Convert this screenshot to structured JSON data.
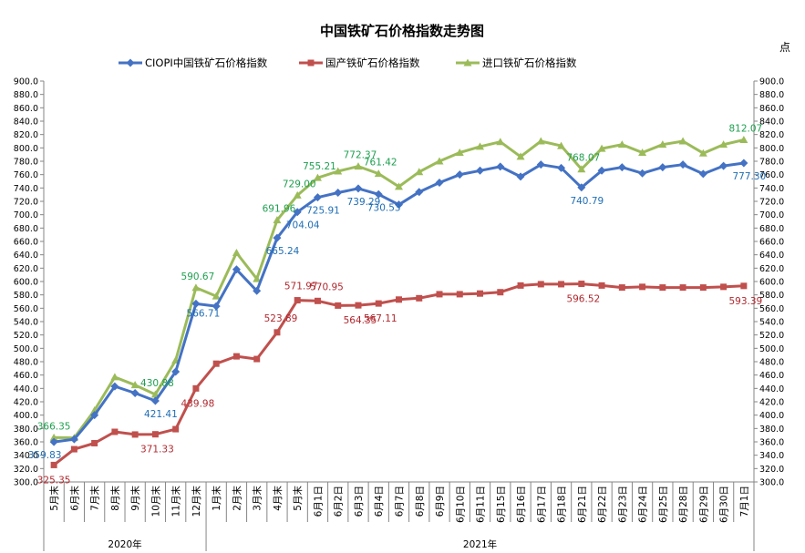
{
  "chart_data": {
    "type": "line",
    "title": "中国铁矿石价格指数走势图",
    "unit_label": "点",
    "x": [
      "5月末",
      "6月末",
      "7月末",
      "8月末",
      "9月末",
      "10月末",
      "11月末",
      "12月末",
      "1月末",
      "2月末",
      "3月末",
      "4月末",
      "5月末",
      "6月1日",
      "6月2日",
      "6月3日",
      "6月4日",
      "6月7日",
      "6月8日",
      "6月9日",
      "6月10日",
      "6月11日",
      "6月15日",
      "6月16日",
      "6月17日",
      "6月18日",
      "6月21日",
      "6月22日",
      "6月23日",
      "6月24日",
      "6月25日",
      "6月28日",
      "6月29日",
      "6月30日",
      "7月1日"
    ],
    "year_groups": [
      {
        "label": "2020年",
        "start": 0,
        "end": 7
      },
      {
        "label": "2021年",
        "start": 8,
        "end": 34
      }
    ],
    "ylim": [
      300,
      900
    ],
    "ytick_step": 20,
    "grid": false,
    "legend_position": "top",
    "series": [
      {
        "name": "CIOPI中国铁矿石价格指数",
        "color": "#4472C4",
        "marker": "diamond",
        "values": [
          359.83,
          364,
          400,
          443,
          433,
          421.41,
          465,
          566.71,
          563,
          618,
          586,
          665.24,
          704.04,
          725.91,
          733,
          739.29,
          730.53,
          715,
          734,
          748,
          760,
          766,
          772,
          757,
          775,
          770,
          740.79,
          766,
          771,
          762,
          771,
          775,
          761,
          773,
          777.3
        ],
        "labels": [
          {
            "i": 0,
            "text": "359.83"
          },
          {
            "i": 5,
            "text": "421.41"
          },
          {
            "i": 7,
            "text": "566.71"
          },
          {
            "i": 11,
            "text": "665.24"
          },
          {
            "i": 12,
            "text": "704.04"
          },
          {
            "i": 13,
            "text": "725.91"
          },
          {
            "i": 15,
            "text": "739.29"
          },
          {
            "i": 16,
            "text": "730.53"
          },
          {
            "i": 26,
            "text": "740.79"
          },
          {
            "i": 34,
            "text": "777.30"
          }
        ]
      },
      {
        "name": "国产铁矿石价格指数",
        "color": "#C0504D",
        "marker": "square",
        "values": [
          325.35,
          349,
          358,
          375,
          371,
          371.33,
          379,
          439.98,
          477,
          488,
          484,
          523.89,
          571.97,
          570.95,
          564,
          564.35,
          567.11,
          573,
          575,
          581,
          581,
          582,
          584,
          594,
          596,
          596,
          596.52,
          594,
          591,
          592,
          591,
          591,
          591,
          592,
          593.39
        ],
        "labels": [
          {
            "i": 0,
            "text": "325.35"
          },
          {
            "i": 5,
            "text": "371.33"
          },
          {
            "i": 7,
            "text": "439.98"
          },
          {
            "i": 11,
            "text": "523.89"
          },
          {
            "i": 12,
            "text": "571.97"
          },
          {
            "i": 13,
            "text": "570.95"
          },
          {
            "i": 15,
            "text": "564.35"
          },
          {
            "i": 16,
            "text": "567.11"
          },
          {
            "i": 26,
            "text": "596.52"
          },
          {
            "i": 34,
            "text": "593.39"
          }
        ]
      },
      {
        "name": "进口铁矿石价格指数",
        "color": "#9BBB59",
        "marker": "triangle",
        "values": [
          366.35,
          366,
          407,
          457,
          445,
          430.88,
          482,
          590.67,
          578,
          643,
          604,
          691.96,
          729.0,
          755.21,
          765,
          772.37,
          761.42,
          742,
          764,
          780,
          793,
          802,
          809,
          787,
          810,
          803,
          768.07,
          799,
          805,
          793,
          805,
          810,
          792,
          805,
          812.07
        ],
        "labels": [
          {
            "i": 0,
            "text": "366.35"
          },
          {
            "i": 5,
            "text": "430.88"
          },
          {
            "i": 7,
            "text": "590.67"
          },
          {
            "i": 11,
            "text": "691.96"
          },
          {
            "i": 12,
            "text": "729.00"
          },
          {
            "i": 13,
            "text": "755.21"
          },
          {
            "i": 15,
            "text": "772.37"
          },
          {
            "i": 16,
            "text": "761.42"
          },
          {
            "i": 26,
            "text": "768.07"
          },
          {
            "i": 34,
            "text": "812.07"
          }
        ]
      }
    ],
    "label_colors": {
      "CIOPI": "#1F6EB5",
      "domestic": "#B0282E",
      "import": "#1FA050"
    }
  }
}
